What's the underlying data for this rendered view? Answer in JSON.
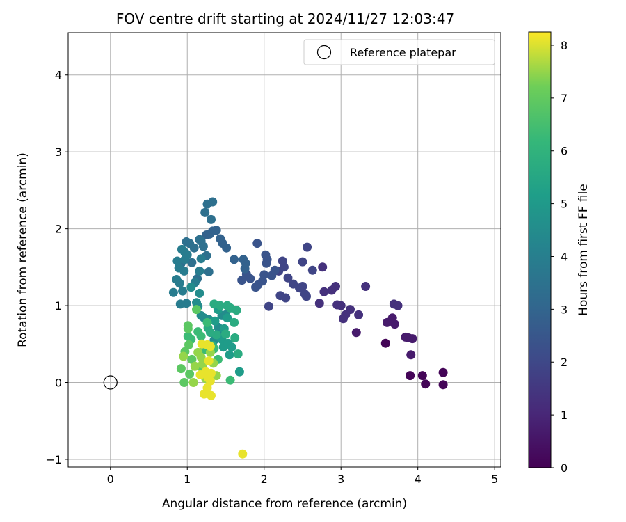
{
  "chart_data": {
    "type": "scatter",
    "title": "FOV centre drift starting at 2024/11/27 12:03:47",
    "xlabel": "Angular distance from reference (arcmin)",
    "ylabel": "Rotation from reference (arcmin)",
    "xlim": [
      -0.55,
      5.08
    ],
    "ylim": [
      -1.1,
      4.55
    ],
    "x_ticks": [
      0,
      1,
      2,
      3,
      4,
      5
    ],
    "y_ticks": [
      -1,
      0,
      1,
      2,
      3,
      4
    ],
    "grid": true,
    "legend": {
      "position": "top-right",
      "entries": [
        {
          "label": "Reference platepar",
          "marker": "hollow-circle"
        }
      ]
    },
    "reference_point": {
      "x": 0,
      "y": 0
    },
    "colorbar": {
      "label": "Hours from first FF file",
      "colormap": "viridis",
      "range": [
        0,
        8.25
      ],
      "ticks": [
        0,
        1,
        2,
        3,
        4,
        5,
        6,
        7,
        8
      ]
    },
    "series": [
      {
        "hours": 0.1,
        "points": [
          [
            4.33,
            0.13
          ],
          [
            4.33,
            -0.03
          ],
          [
            4.1,
            -0.02
          ],
          [
            4.06,
            0.09
          ],
          [
            3.9,
            0.09
          ],
          [
            3.58,
            0.51
          ]
        ]
      },
      {
        "hours": 0.7,
        "points": [
          [
            3.91,
            0.36
          ],
          [
            3.93,
            0.57
          ],
          [
            3.88,
            0.58
          ],
          [
            3.84,
            0.59
          ],
          [
            3.7,
            0.76
          ],
          [
            3.6,
            0.78
          ],
          [
            3.67,
            0.84
          ],
          [
            3.2,
            0.65
          ]
        ]
      },
      {
        "hours": 1.3,
        "points": [
          [
            3.69,
            1.02
          ],
          [
            3.74,
            1.0
          ],
          [
            3.32,
            1.25
          ],
          [
            3.23,
            0.88
          ],
          [
            3.12,
            0.95
          ],
          [
            3.06,
            0.88
          ],
          [
            3.03,
            0.83
          ],
          [
            3.0,
            1.0
          ],
          [
            2.95,
            1.01
          ],
          [
            2.93,
            1.25
          ],
          [
            2.88,
            1.2
          ],
          [
            2.78,
            1.18
          ],
          [
            2.72,
            1.03
          ],
          [
            2.76,
            1.5
          ]
        ]
      },
      {
        "hours": 1.9,
        "points": [
          [
            2.63,
            1.46
          ],
          [
            2.56,
            1.76
          ],
          [
            2.55,
            1.12
          ],
          [
            2.53,
            1.15
          ],
          [
            2.5,
            1.57
          ],
          [
            2.5,
            1.25
          ],
          [
            2.46,
            1.23
          ],
          [
            2.38,
            1.28
          ],
          [
            2.31,
            1.36
          ],
          [
            2.28,
            1.1
          ],
          [
            2.21,
            1.13
          ],
          [
            2.06,
            0.99
          ],
          [
            2.26,
            1.5
          ],
          [
            2.24,
            1.58
          ],
          [
            2.19,
            1.45
          ]
        ]
      },
      {
        "hours": 2.4,
        "points": [
          [
            2.14,
            1.46
          ],
          [
            2.1,
            1.39
          ],
          [
            2.04,
            1.6
          ],
          [
            2.03,
            1.55
          ],
          [
            2.02,
            1.66
          ],
          [
            2.0,
            1.4
          ],
          [
            1.98,
            1.32
          ],
          [
            1.92,
            1.27
          ],
          [
            1.89,
            1.24
          ],
          [
            1.91,
            1.81
          ],
          [
            1.82,
            1.35
          ],
          [
            1.77,
            1.41
          ],
          [
            1.71,
            1.33
          ]
        ]
      },
      {
        "hours": 2.9,
        "points": [
          [
            1.75,
            1.48
          ],
          [
            1.76,
            1.55
          ],
          [
            1.73,
            1.6
          ],
          [
            1.61,
            1.6
          ],
          [
            1.51,
            1.75
          ],
          [
            1.46,
            1.81
          ],
          [
            1.43,
            1.87
          ],
          [
            1.38,
            1.98
          ],
          [
            1.33,
            1.97
          ],
          [
            1.29,
            1.93
          ],
          [
            1.25,
            1.92
          ]
        ]
      },
      {
        "hours": 3.4,
        "points": [
          [
            1.33,
            2.35
          ],
          [
            1.26,
            2.32
          ],
          [
            1.31,
            2.12
          ],
          [
            1.23,
            2.21
          ],
          [
            1.25,
            1.65
          ],
          [
            1.28,
            1.44
          ],
          [
            1.21,
            1.77
          ],
          [
            1.18,
            1.84
          ],
          [
            1.16,
            1.86
          ],
          [
            1.13,
            1.35
          ],
          [
            1.09,
            1.75
          ],
          [
            1.06,
            1.56
          ],
          [
            1.03,
            1.81
          ],
          [
            0.99,
            1.83
          ],
          [
            0.92,
            1.55
          ]
        ]
      },
      {
        "hours": 3.9,
        "points": [
          [
            1.0,
            1.66
          ],
          [
            0.97,
            1.6
          ],
          [
            0.96,
            1.45
          ],
          [
            0.97,
            1.69
          ],
          [
            0.93,
            1.73
          ],
          [
            0.89,
            1.49
          ],
          [
            0.87,
            1.58
          ],
          [
            0.86,
            1.34
          ],
          [
            0.9,
            1.29
          ],
          [
            0.82,
            1.17
          ],
          [
            0.94,
            1.19
          ],
          [
            0.99,
            1.03
          ],
          [
            0.91,
            1.02
          ],
          [
            1.1,
            1.3
          ],
          [
            1.16,
            1.45
          ],
          [
            1.18,
            1.61
          ]
        ]
      },
      {
        "hours": 4.5,
        "points": [
          [
            1.12,
            1.04
          ],
          [
            1.14,
            0.99
          ],
          [
            1.18,
            0.87
          ],
          [
            1.22,
            0.84
          ],
          [
            1.28,
            0.82
          ],
          [
            1.4,
            0.72
          ],
          [
            1.45,
            0.87
          ],
          [
            1.5,
            0.88
          ],
          [
            1.42,
            0.62
          ],
          [
            1.35,
            0.55
          ],
          [
            1.16,
            1.16
          ],
          [
            1.05,
            1.24
          ]
        ]
      },
      {
        "hours": 5.1,
        "points": [
          [
            1.52,
            0.84
          ],
          [
            1.48,
            0.7
          ],
          [
            1.45,
            0.56
          ],
          [
            1.47,
            0.46
          ],
          [
            1.53,
            0.51
          ],
          [
            1.55,
            0.36
          ],
          [
            1.58,
            0.46
          ],
          [
            1.68,
            0.14
          ],
          [
            1.4,
            0.95
          ],
          [
            1.36,
            0.8
          ]
        ]
      },
      {
        "hours": 5.7,
        "points": [
          [
            1.35,
            1.02
          ],
          [
            1.43,
            1.0
          ],
          [
            1.52,
            1.0
          ],
          [
            1.56,
            0.97
          ],
          [
            1.64,
            0.94
          ],
          [
            1.61,
            0.78
          ],
          [
            1.62,
            0.58
          ],
          [
            1.66,
            0.37
          ],
          [
            1.5,
            0.63
          ],
          [
            1.38,
            0.62
          ],
          [
            1.33,
            0.48
          ],
          [
            1.3,
            0.65
          ],
          [
            1.27,
            0.71
          ]
        ]
      },
      {
        "hours": 6.3,
        "points": [
          [
            1.26,
            0.78
          ],
          [
            1.18,
            0.6
          ],
          [
            1.14,
            0.66
          ],
          [
            1.22,
            0.43
          ],
          [
            1.35,
            0.44
          ],
          [
            1.4,
            0.3
          ],
          [
            1.56,
            0.03
          ],
          [
            1.05,
            0.56
          ],
          [
            1.01,
            0.6
          ]
        ]
      },
      {
        "hours": 6.9,
        "points": [
          [
            1.01,
            0.74
          ],
          [
            1.01,
            0.7
          ],
          [
            1.02,
            0.49
          ],
          [
            0.97,
            0.4
          ],
          [
            1.06,
            0.3
          ],
          [
            0.92,
            0.18
          ],
          [
            0.96,
            0.0
          ],
          [
            1.03,
            0.11
          ],
          [
            1.12,
            0.95
          ],
          [
            1.2,
            0.18
          ]
        ]
      },
      {
        "hours": 7.5,
        "points": [
          [
            1.08,
            0.0
          ],
          [
            1.2,
            0.24
          ],
          [
            1.1,
            0.21
          ],
          [
            1.18,
            0.33
          ],
          [
            1.3,
            0.39
          ],
          [
            1.34,
            0.25
          ],
          [
            1.38,
            0.09
          ],
          [
            1.24,
            0.05
          ],
          [
            1.14,
            0.39
          ],
          [
            0.95,
            0.34
          ]
        ]
      },
      {
        "hours": 8.1,
        "points": [
          [
            1.72,
            -0.93
          ],
          [
            1.31,
            -0.17
          ],
          [
            1.22,
            -0.15
          ],
          [
            1.26,
            -0.07
          ],
          [
            1.27,
            0.06
          ],
          [
            1.31,
            0.12
          ],
          [
            1.24,
            0.14
          ],
          [
            1.17,
            0.1
          ],
          [
            1.28,
            0.28
          ],
          [
            1.3,
            0.47
          ],
          [
            1.26,
            0.49
          ],
          [
            1.19,
            0.5
          ],
          [
            1.3,
            0.02
          ]
        ]
      }
    ]
  }
}
